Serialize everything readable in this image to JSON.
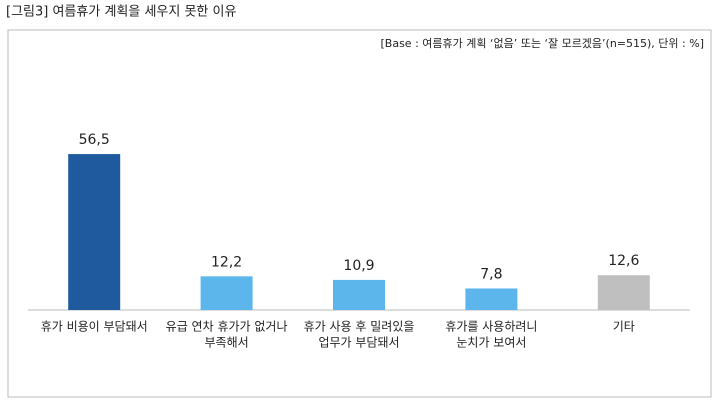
{
  "chart_data": {
    "type": "bar",
    "title": "[그림3] 여름휴가 계획을 세우지 못한 이유",
    "subtitle": "[Base : 여름휴가 계획 ‘없음’ 또는 ‘잘 모르겠음’(n=515), 단위 : %]",
    "categories": [
      [
        "휴가 비용이 부담돼서"
      ],
      [
        "유급 연차 휴가가 없거나",
        "부족해서"
      ],
      [
        "휴가 사용 후 밀려있을",
        "업무가 부담돼서"
      ],
      [
        "휴가를 사용하려니",
        "눈치가 보여서"
      ],
      [
        "기타"
      ]
    ],
    "values": [
      56.5,
      12.2,
      10.9,
      7.8,
      12.6
    ],
    "value_labels": [
      "56,5",
      "12,2",
      "10,9",
      "7,8",
      "12,6"
    ],
    "colors": [
      "#1f5a9e",
      "#5cb6ec",
      "#5cb6ec",
      "#5cb6ec",
      "#bfbfbf"
    ]
  }
}
